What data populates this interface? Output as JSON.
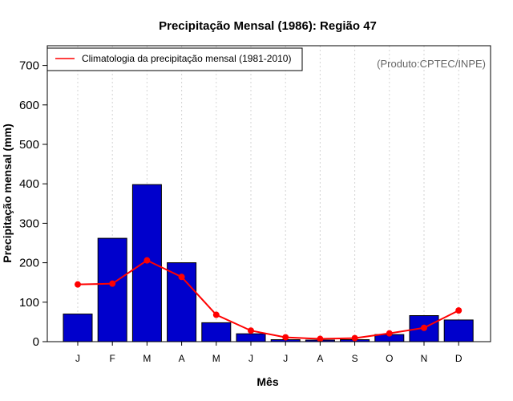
{
  "chart_data": {
    "type": "bar",
    "title": "Precipitação Mensal (1986): Região 47",
    "xlabel": "Mês",
    "ylabel": "Precipitação mensal (mm)",
    "ylim": [
      0,
      750
    ],
    "yticks": [
      0,
      100,
      200,
      300,
      400,
      500,
      600,
      700
    ],
    "categories": [
      "J",
      "F",
      "M",
      "A",
      "M",
      "J",
      "J",
      "A",
      "S",
      "O",
      "N",
      "D"
    ],
    "series": [
      {
        "name": "Precipitação mensal 1986",
        "type": "bar",
        "color": "#0000CC",
        "values": [
          70,
          262,
          398,
          200,
          48,
          20,
          5,
          4,
          5,
          18,
          66,
          55
        ]
      },
      {
        "name": "Climatologia da precipitação mensal (1981-2010)",
        "type": "line",
        "color": "#FF0000",
        "values": [
          145,
          147,
          206,
          164,
          68,
          28,
          11,
          7,
          9,
          21,
          35,
          79
        ]
      }
    ],
    "legend": {
      "position": "top-left",
      "entries": [
        "Climatologia da precipitação mensal (1981-2010)"
      ]
    },
    "annotation": "(Produto:CPTEC/INPE)",
    "grid": "vertical-dotted"
  }
}
